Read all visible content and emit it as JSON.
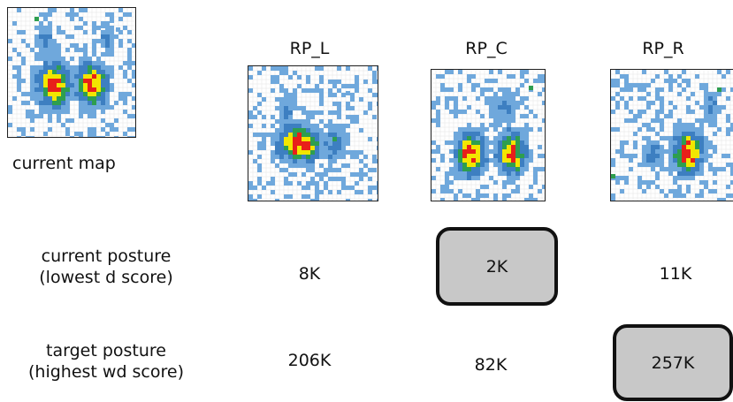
{
  "current_map": {
    "caption": "current map"
  },
  "columns": [
    {
      "header": "RP_L",
      "current_score": "8K",
      "target_score": "206K"
    },
    {
      "header": "RP_C",
      "current_score": "2K",
      "target_score": "82K"
    },
    {
      "header": "RP_R",
      "current_score": "11K",
      "target_score": "257K"
    }
  ],
  "rows": {
    "current_posture": {
      "line1": "current posture",
      "line2": "(lowest d score)"
    },
    "target_posture": {
      "line1": "target posture",
      "line2": "(highest wd score)"
    }
  },
  "highlight": {
    "current_posture": "RP_C",
    "target_posture": "RP_R"
  },
  "colors": {
    "low": "#6fa8dc",
    "low_dark": "#3d7fc1",
    "mid": "#2e9e4f",
    "mid_high": "#f2e600",
    "high": "#e8201a",
    "highlight_fill": "#c8c8c8"
  }
}
